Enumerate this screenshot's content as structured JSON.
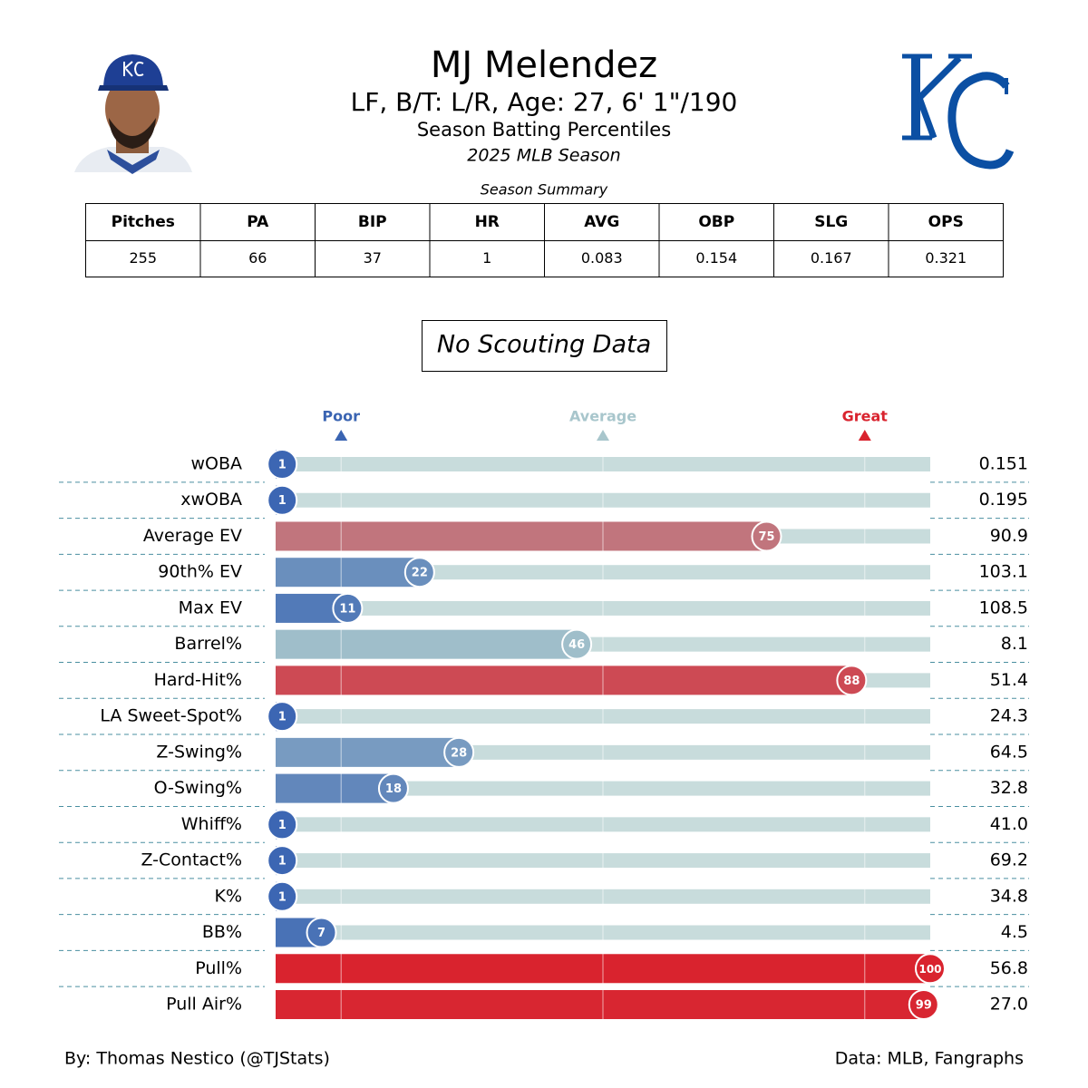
{
  "header": {
    "title": "MJ Melendez",
    "subtitle": "LF, B/T: L/R, Age: 27, 6' 1\"/190",
    "description": "Season Batting Percentiles",
    "season": "2025 MLB Season"
  },
  "summary_table": {
    "title": "Season Summary",
    "columns": [
      "Pitches",
      "PA",
      "BIP",
      "HR",
      "AVG",
      "OBP",
      "SLG",
      "OPS"
    ],
    "rows": [
      [
        255,
        66,
        37,
        1,
        0.083,
        0.154,
        0.167,
        0.321
      ]
    ]
  },
  "scouting": "No Scouting Data",
  "chart_data": {
    "type": "percentile_bar",
    "categories": [
      "wOBA",
      "xwOBA",
      "Average EV",
      "90th% EV",
      "Max EV",
      "Barrel%",
      "Hard-Hit%",
      "LA Sweet-Spot%",
      "Z-Swing%",
      "O-Swing%",
      "Whiff%",
      "Z-Contact%",
      "K%",
      "BB%",
      "Pull%",
      "Pull Air%"
    ],
    "values": [
      1,
      1,
      75,
      22,
      11,
      46,
      88,
      1,
      28,
      18,
      1,
      1,
      1,
      7,
      100,
      99
    ],
    "stat_values": [
      "0.151",
      "0.195",
      "90.9",
      "103.1",
      "108.5",
      "8.1",
      "51.4",
      "24.3",
      "64.5",
      "32.8",
      "41.0",
      "69.2",
      "34.8",
      "4.5",
      "56.8",
      "27.0"
    ],
    "xlim": [
      0,
      100
    ],
    "markers": [
      {
        "label": "Poor",
        "value": 10,
        "color": "#3a64b2"
      },
      {
        "label": "Average",
        "value": 50,
        "color": "#a8c6cc"
      },
      {
        "label": "Great",
        "value": 90,
        "color": "#d9232e"
      }
    ],
    "colormap": [
      "#3a64b2",
      "#a8c6cc",
      "#d9232e"
    ],
    "track_color": "#c8dcdc"
  },
  "footer": {
    "credit": "By: Thomas Nestico (@TJStats)",
    "source": "Data: MLB, Fangraphs"
  }
}
